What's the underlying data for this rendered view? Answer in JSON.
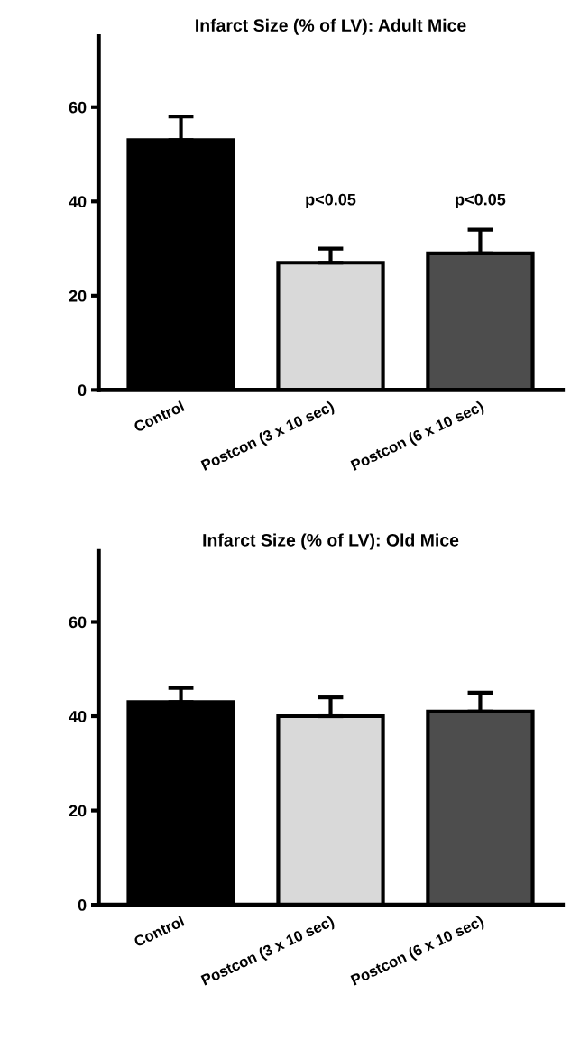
{
  "chart_data": [
    {
      "type": "bar",
      "title": "Infarct Size (% of LV): Adult Mice",
      "categories": [
        "Control",
        "Postcon (3 x 10 sec)",
        "Postcon (6 x 10 sec)"
      ],
      "values": [
        53,
        27,
        29
      ],
      "errors": [
        [
          53,
          58
        ],
        [
          27,
          30
        ],
        [
          29,
          34
        ]
      ],
      "colors": [
        "#000000",
        "#d9d9d9",
        "#4d4d4d"
      ],
      "ylim": [
        0,
        75
      ],
      "yticks": [
        0,
        20,
        40,
        60
      ],
      "grid": false,
      "annotations": [
        "p<0.05",
        "p<0.05"
      ]
    },
    {
      "type": "bar",
      "title": "Infarct Size (% of LV): Old Mice",
      "categories": [
        "Control",
        "Postcon (3 x 10 sec)",
        "Postcon (6 x 10 sec)"
      ],
      "values": [
        43,
        40,
        41
      ],
      "errors": [
        [
          43,
          46
        ],
        [
          40,
          44
        ],
        [
          41,
          45
        ]
      ],
      "colors": [
        "#000000",
        "#d9d9d9",
        "#4d4d4d"
      ],
      "ylim": [
        0,
        75
      ],
      "yticks": [
        0,
        20,
        40,
        60
      ],
      "grid": false
    }
  ]
}
